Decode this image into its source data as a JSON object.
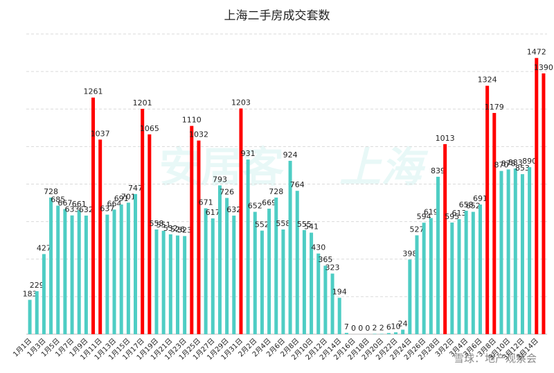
{
  "chart_data": {
    "type": "bar",
    "title": "上海二手房成交套数",
    "categories": [
      "1月1日",
      null,
      "1月3日",
      null,
      "1月5日",
      null,
      "1月7日",
      null,
      "1月9日",
      null,
      "1月11日",
      null,
      "1月13日",
      null,
      "1月15日",
      null,
      "1月17日",
      null,
      "1月19日",
      null,
      "1月21日",
      null,
      "1月23日",
      null,
      "1月25日",
      null,
      "1月27日",
      null,
      "1月29日",
      null,
      "1月31日",
      null,
      "2月2日",
      null,
      "2月4日",
      null,
      "2月6日",
      null,
      "2月8日",
      null,
      "2月10日",
      null,
      "2月12日",
      null,
      "2月14日",
      null,
      "2月16日",
      null,
      "2月18日",
      null,
      "2月20日",
      null,
      "2月22日",
      null,
      "2月24日",
      null,
      "2月26日",
      null,
      "2月28日",
      null,
      "3月2日",
      null,
      "3月4日",
      null,
      "3月6日",
      null,
      "3月8日",
      null,
      "3月10日",
      null,
      "3月12日",
      null,
      "3月14日",
      null
    ],
    "values": [
      183,
      229,
      427,
      728,
      685,
      667,
      633,
      661,
      632,
      1261,
      1037,
      637,
      664,
      691,
      701,
      747,
      1201,
      1065,
      558,
      551,
      532,
      526,
      523,
      1110,
      1032,
      671,
      617,
      793,
      726,
      632,
      1203,
      931,
      652,
      552,
      669,
      728,
      558,
      924,
      764,
      555,
      541,
      430,
      365,
      323,
      194,
      7,
      0,
      0,
      0,
      2,
      2,
      6,
      10,
      24,
      398,
      527,
      594,
      619,
      839,
      1013,
      595,
      613,
      658,
      652,
      691,
      1324,
      1179,
      870,
      878,
      883,
      853,
      890,
      1472,
      1390
    ],
    "colors": [
      "#4ecdc4",
      "#4ecdc4",
      "#4ecdc4",
      "#4ecdc4",
      "#4ecdc4",
      "#4ecdc4",
      "#4ecdc4",
      "#4ecdc4",
      "#4ecdc4",
      "#ff0000",
      "#ff0000",
      "#4ecdc4",
      "#4ecdc4",
      "#4ecdc4",
      "#4ecdc4",
      "#4ecdc4",
      "#ff0000",
      "#ff0000",
      "#4ecdc4",
      "#4ecdc4",
      "#4ecdc4",
      "#4ecdc4",
      "#4ecdc4",
      "#ff0000",
      "#ff0000",
      "#4ecdc4",
      "#4ecdc4",
      "#4ecdc4",
      "#4ecdc4",
      "#4ecdc4",
      "#ff0000",
      "#4ecdc4",
      "#4ecdc4",
      "#4ecdc4",
      "#4ecdc4",
      "#4ecdc4",
      "#4ecdc4",
      "#4ecdc4",
      "#4ecdc4",
      "#4ecdc4",
      "#4ecdc4",
      "#4ecdc4",
      "#4ecdc4",
      "#4ecdc4",
      "#4ecdc4",
      "#4ecdc4",
      "#4ecdc4",
      "#4ecdc4",
      "#4ecdc4",
      "#4ecdc4",
      "#4ecdc4",
      "#4ecdc4",
      "#4ecdc4",
      "#4ecdc4",
      "#4ecdc4",
      "#4ecdc4",
      "#4ecdc4",
      "#4ecdc4",
      "#4ecdc4",
      "#ff0000",
      "#4ecdc4",
      "#4ecdc4",
      "#4ecdc4",
      "#4ecdc4",
      "#4ecdc4",
      "#ff0000",
      "#ff0000",
      "#4ecdc4",
      "#4ecdc4",
      "#4ecdc4",
      "#4ecdc4",
      "#4ecdc4",
      "#ff0000",
      "#ff0000"
    ],
    "ylim": [
      0,
      1600
    ],
    "yticks": [
      0,
      200,
      400,
      600,
      800,
      1000,
      1200,
      1400,
      1600
    ],
    "grid": true,
    "watermarks": [
      "安居客",
      "上海",
      "雪球：地产观察会"
    ]
  }
}
